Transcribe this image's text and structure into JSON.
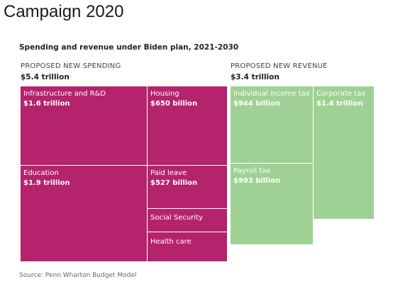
{
  "page_title": "Campaign 2020",
  "chart_data": {
    "type": "treemap",
    "title": "Spending and revenue under Biden plan, 2021-2030",
    "unit": "USD",
    "groups": [
      {
        "label": "PROPOSED NEW SPENDING",
        "total_label": "$5.4 trillion",
        "total": 5.4,
        "color": "#b5236c",
        "items": [
          {
            "name": "Infrastructure and R&D",
            "value_label": "$1.6 trillion",
            "value": 1.6
          },
          {
            "name": "Housing",
            "value_label": "$650 billion",
            "value": 0.65
          },
          {
            "name": "Education",
            "value_label": "$1.9 trillion",
            "value": 1.9
          },
          {
            "name": "Paid leave",
            "value_label": "$527 billion",
            "value": 0.527
          },
          {
            "name": "Social Security",
            "value_label": "",
            "value": null
          },
          {
            "name": "Health care",
            "value_label": "",
            "value": null
          }
        ]
      },
      {
        "label": "PROPOSED NEW REVENUE",
        "total_label": "$3.4 trillion",
        "total": 3.4,
        "color": "#9fd194",
        "items": [
          {
            "name": "Individual income tax",
            "value_label": "$944 billion",
            "value": 0.944
          },
          {
            "name": "Corporate tax",
            "value_label": "$1.4 trillion",
            "value": 1.4
          },
          {
            "name": "Payroll tax",
            "value_label": "$993 billion",
            "value": 0.993
          }
        ]
      }
    ],
    "source": "Source: Penn Wharton Budget Model"
  }
}
